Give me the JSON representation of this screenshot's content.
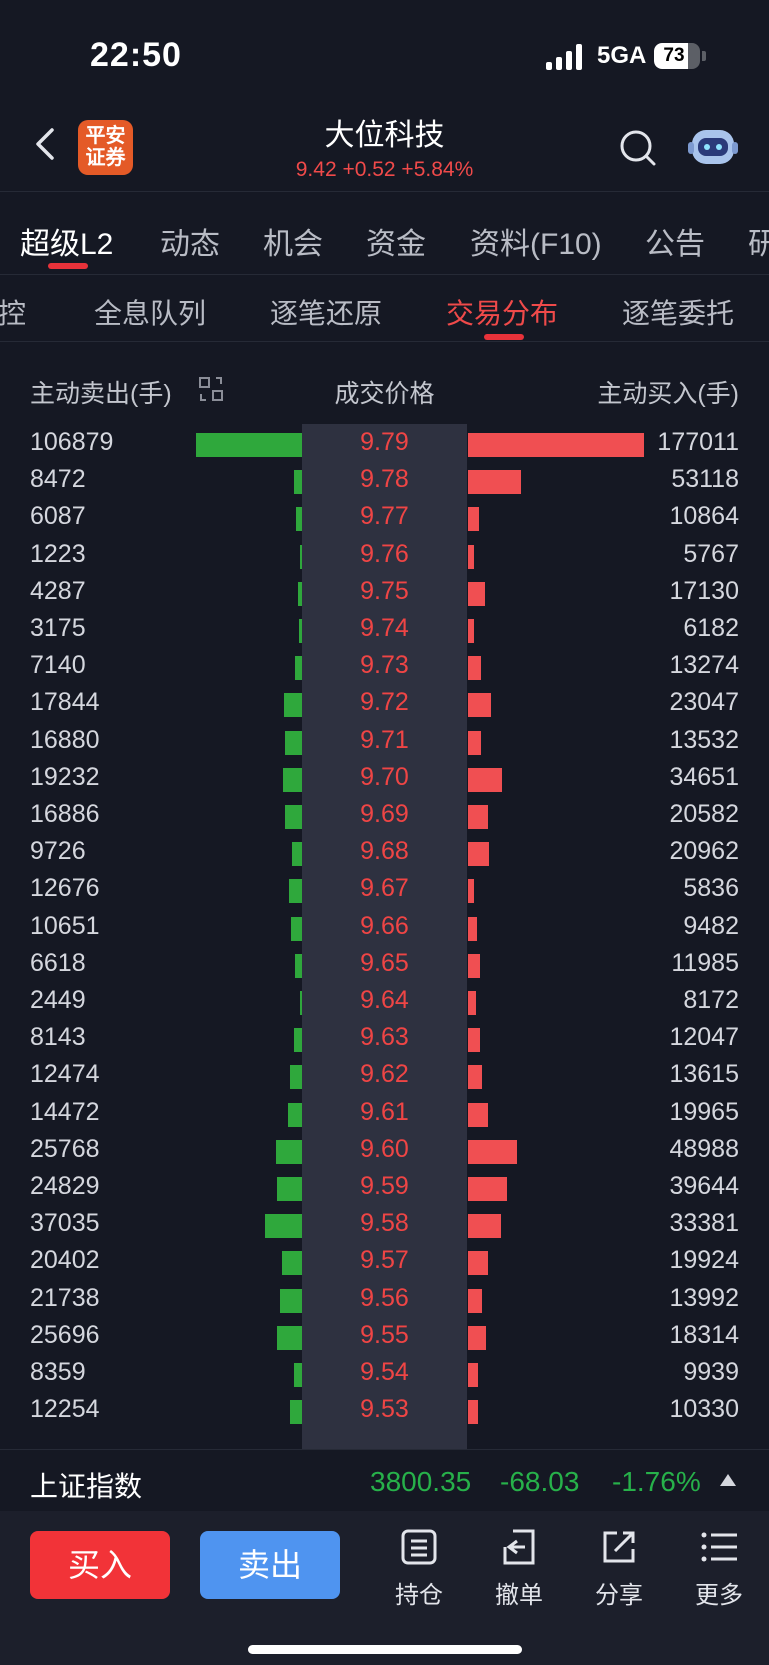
{
  "status": {
    "time": "22:50",
    "network": "5GA",
    "battery": "73",
    "battery_level": 0.73
  },
  "header": {
    "stock_name": "大位科技",
    "quote": "9.42 +0.52 +5.84%",
    "logo_text_line1": "平安",
    "logo_text_line2": "证券"
  },
  "tabs_primary": [
    "超级L2",
    "动态",
    "机会",
    "资金",
    "资料(F10)",
    "公告",
    "研"
  ],
  "tabs_secondary": [
    "监控",
    "全息队列",
    "逐笔还原",
    "交易分布",
    "逐笔委托"
  ],
  "table_header": {
    "sell": "主动卖出(手)",
    "price": "成交价格",
    "buy": "主动买入(手)"
  },
  "rows": [
    {
      "sell": 106879,
      "price": "9.79",
      "buy": 177011
    },
    {
      "sell": 8472,
      "price": "9.78",
      "buy": 53118
    },
    {
      "sell": 6087,
      "price": "9.77",
      "buy": 10864
    },
    {
      "sell": 1223,
      "price": "9.76",
      "buy": 5767
    },
    {
      "sell": 4287,
      "price": "9.75",
      "buy": 17130
    },
    {
      "sell": 3175,
      "price": "9.74",
      "buy": 6182
    },
    {
      "sell": 7140,
      "price": "9.73",
      "buy": 13274
    },
    {
      "sell": 17844,
      "price": "9.72",
      "buy": 23047
    },
    {
      "sell": 16880,
      "price": "9.71",
      "buy": 13532
    },
    {
      "sell": 19232,
      "price": "9.70",
      "buy": 34651
    },
    {
      "sell": 16886,
      "price": "9.69",
      "buy": 20582
    },
    {
      "sell": 9726,
      "price": "9.68",
      "buy": 20962
    },
    {
      "sell": 12676,
      "price": "9.67",
      "buy": 5836
    },
    {
      "sell": 10651,
      "price": "9.66",
      "buy": 9482
    },
    {
      "sell": 6618,
      "price": "9.65",
      "buy": 11985
    },
    {
      "sell": 2449,
      "price": "9.64",
      "buy": 8172
    },
    {
      "sell": 8143,
      "price": "9.63",
      "buy": 12047
    },
    {
      "sell": 12474,
      "price": "9.62",
      "buy": 13615
    },
    {
      "sell": 14472,
      "price": "9.61",
      "buy": 19965
    },
    {
      "sell": 25768,
      "price": "9.60",
      "buy": 48988
    },
    {
      "sell": 24829,
      "price": "9.59",
      "buy": 39644
    },
    {
      "sell": 37035,
      "price": "9.58",
      "buy": 33381
    },
    {
      "sell": 20402,
      "price": "9.57",
      "buy": 19924
    },
    {
      "sell": 21738,
      "price": "9.56",
      "buy": 13992
    },
    {
      "sell": 25696,
      "price": "9.55",
      "buy": 18314
    },
    {
      "sell": 8359,
      "price": "9.54",
      "buy": 9939
    },
    {
      "sell": 12254,
      "price": "9.53",
      "buy": 10330
    }
  ],
  "index": {
    "name": "上证指数",
    "value": "3800.35",
    "change": "-68.03",
    "pct": "-1.76%"
  },
  "toolbar": {
    "buy": "买入",
    "sell": "卖出",
    "position": "持仓",
    "cancel": "撤单",
    "share": "分享",
    "more": "更多"
  },
  "colors": {
    "up": "#f04a4a",
    "down": "#27b14a",
    "buy_bar": "#f04f52",
    "sell_bar": "#2fa83c",
    "accent": "#e8323a"
  }
}
